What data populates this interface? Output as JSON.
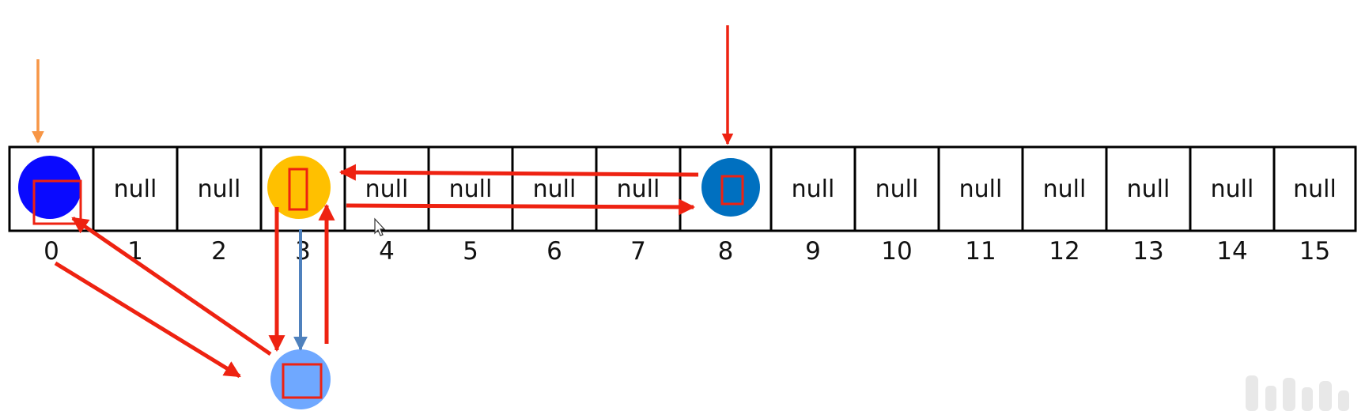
{
  "colors": {
    "red": "#ee2211",
    "orange": "#f79646",
    "steel_blue": "#4f81bd",
    "blue_node": "#0a0aff",
    "yellow_node": "#ffc000",
    "dark_blue_node": "#0070c0",
    "light_blue_node": "#6fa8ff",
    "watermark": "#d9d9d9"
  },
  "array": {
    "cells": [
      {
        "index": "0",
        "label": "",
        "node": "blue"
      },
      {
        "index": "1",
        "label": "null"
      },
      {
        "index": "2",
        "label": "null"
      },
      {
        "index": "3",
        "label": "",
        "node": "yellow"
      },
      {
        "index": "4",
        "label": "null"
      },
      {
        "index": "5",
        "label": "null"
      },
      {
        "index": "6",
        "label": "null"
      },
      {
        "index": "7",
        "label": "null"
      },
      {
        "index": "8",
        "label": "",
        "node": "dark-blue"
      },
      {
        "index": "9",
        "label": "null"
      },
      {
        "index": "10",
        "label": "null"
      },
      {
        "index": "11",
        "label": "null"
      },
      {
        "index": "12",
        "label": "null"
      },
      {
        "index": "13",
        "label": "null"
      },
      {
        "index": "14",
        "label": "null"
      },
      {
        "index": "15",
        "label": "null"
      }
    ]
  },
  "linked_node": {
    "attached_to_index": "3",
    "color": "light-blue"
  },
  "watermark": {
    "icon": "bilibili-logo-icon"
  }
}
